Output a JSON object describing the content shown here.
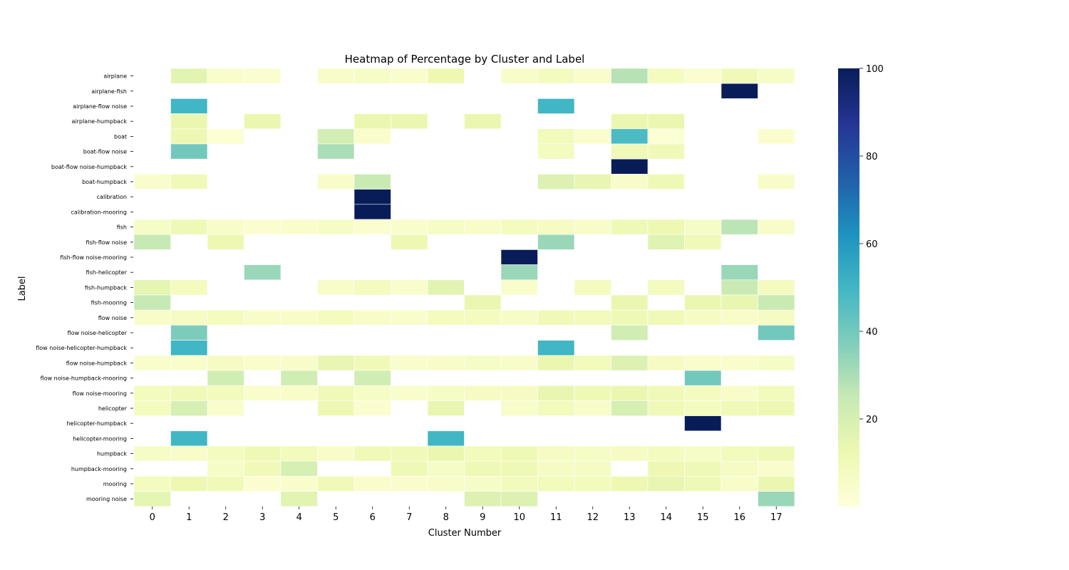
{
  "chart_data": {
    "type": "heatmap",
    "title": "Heatmap of Percentage by Cluster and Label",
    "xlabel": "Cluster Number",
    "ylabel": "Label",
    "x_categories": [
      "0",
      "1",
      "2",
      "3",
      "4",
      "5",
      "6",
      "7",
      "8",
      "9",
      "10",
      "11",
      "12",
      "13",
      "14",
      "15",
      "16",
      "17"
    ],
    "y_categories": [
      "airplane",
      "airplane-fish",
      "airplane-flow noise",
      "airplane-humpback",
      "boat",
      "boat-flow noise",
      "boat-flow noise-humpback",
      "boat-humpback",
      "calibration",
      "calibration-mooring",
      "fish",
      "fish-flow noise",
      "fish-flow noise-mooring",
      "fish-helicopter",
      "fish-humpback",
      "fish-mooring",
      "flow noise",
      "flow noise-helicopter",
      "flow noise-helicopter-humpback",
      "flow noise-humpback",
      "flow noise-humpback-mooring",
      "flow noise-mooring",
      "helicopter",
      "helicopter-humpback",
      "helicopter-mooring",
      "humpback",
      "humpback-mooring",
      "mooring",
      "mooring noise"
    ],
    "values": [
      [
        null,
        16,
        4,
        3,
        null,
        5,
        6,
        4,
        12,
        null,
        5,
        8,
        4,
        28,
        8,
        3,
        10,
        6
      ],
      [
        null,
        null,
        null,
        null,
        null,
        null,
        null,
        null,
        null,
        null,
        null,
        null,
        null,
        null,
        null,
        null,
        100,
        null
      ],
      [
        null,
        50,
        null,
        null,
        null,
        null,
        null,
        null,
        null,
        null,
        null,
        50,
        null,
        null,
        null,
        null,
        null,
        null
      ],
      [
        null,
        13,
        null,
        13,
        null,
        null,
        13,
        13,
        null,
        13,
        null,
        null,
        null,
        13,
        13,
        null,
        null,
        null
      ],
      [
        null,
        12,
        2,
        null,
        null,
        21,
        4,
        null,
        null,
        null,
        null,
        9,
        3,
        48,
        2,
        null,
        null,
        3
      ],
      [
        null,
        40,
        null,
        null,
        null,
        30,
        null,
        null,
        null,
        null,
        null,
        8,
        null,
        10,
        10,
        null,
        null,
        null
      ],
      [
        null,
        null,
        null,
        null,
        null,
        null,
        null,
        null,
        null,
        null,
        null,
        null,
        null,
        100,
        null,
        null,
        null,
        null
      ],
      [
        4,
        10,
        null,
        null,
        null,
        5,
        24,
        null,
        null,
        null,
        null,
        18,
        14,
        5,
        11,
        null,
        null,
        5
      ],
      [
        null,
        null,
        null,
        null,
        null,
        null,
        100,
        null,
        null,
        null,
        null,
        null,
        null,
        null,
        null,
        null,
        null,
        null
      ],
      [
        null,
        null,
        null,
        null,
        null,
        null,
        100,
        null,
        null,
        null,
        null,
        null,
        null,
        null,
        null,
        null,
        null,
        null
      ],
      [
        6,
        11,
        5,
        3,
        4,
        6,
        3,
        4,
        6,
        5,
        8,
        7,
        5,
        11,
        12,
        6,
        27,
        5
      ],
      [
        25,
        null,
        12,
        null,
        null,
        null,
        null,
        12,
        null,
        null,
        null,
        33,
        null,
        null,
        17,
        10,
        null,
        null
      ],
      [
        null,
        null,
        null,
        null,
        null,
        null,
        null,
        null,
        null,
        null,
        100,
        null,
        null,
        null,
        null,
        null,
        null,
        null
      ],
      [
        null,
        null,
        null,
        33,
        null,
        null,
        null,
        null,
        null,
        null,
        33,
        null,
        null,
        null,
        null,
        null,
        33,
        null
      ],
      [
        15,
        8,
        null,
        null,
        null,
        5,
        8,
        4,
        16,
        null,
        4,
        null,
        8,
        null,
        8,
        null,
        24,
        8
      ],
      [
        25,
        null,
        null,
        null,
        null,
        null,
        null,
        null,
        null,
        13,
        null,
        null,
        null,
        13,
        null,
        13,
        14,
        24
      ],
      [
        5,
        7,
        8,
        5,
        5,
        8,
        5,
        4,
        8,
        8,
        6,
        10,
        9,
        11,
        10,
        7,
        5,
        7
      ],
      [
        null,
        38,
        null,
        null,
        null,
        null,
        null,
        null,
        null,
        null,
        null,
        null,
        null,
        22,
        null,
        null,
        null,
        40
      ],
      [
        null,
        50,
        null,
        null,
        null,
        null,
        null,
        null,
        null,
        null,
        null,
        50,
        null,
        null,
        null,
        null,
        null,
        null
      ],
      [
        4,
        4,
        7,
        4,
        5,
        14,
        10,
        4,
        5,
        6,
        5,
        13,
        9,
        18,
        7,
        4,
        4,
        6
      ],
      [
        null,
        null,
        22,
        null,
        22,
        null,
        22,
        null,
        null,
        null,
        null,
        null,
        null,
        null,
        null,
        40,
        null,
        null
      ],
      [
        8,
        10,
        9,
        4,
        5,
        10,
        6,
        4,
        6,
        7,
        7,
        14,
        11,
        13,
        10,
        8,
        5,
        9
      ],
      [
        8,
        20,
        4,
        null,
        null,
        12,
        3,
        null,
        14,
        null,
        5,
        9,
        5,
        20,
        10,
        8,
        10,
        12
      ],
      [
        null,
        null,
        null,
        null,
        null,
        null,
        null,
        null,
        null,
        null,
        null,
        null,
        null,
        null,
        null,
        100,
        null,
        null
      ],
      [
        null,
        50,
        null,
        null,
        null,
        null,
        null,
        null,
        50,
        null,
        null,
        null,
        null,
        null,
        null,
        null,
        null,
        null
      ],
      [
        6,
        5,
        8,
        11,
        9,
        5,
        10,
        10,
        13,
        9,
        11,
        7,
        6,
        7,
        8,
        6,
        9,
        11
      ],
      [
        null,
        null,
        6,
        10,
        20,
        null,
        null,
        11,
        6,
        11,
        11,
        7,
        7,
        null,
        12,
        11,
        7,
        4
      ],
      [
        8,
        12,
        10,
        3,
        4,
        10,
        4,
        4,
        5,
        6,
        9,
        9,
        9,
        12,
        14,
        11,
        5,
        13
      ],
      [
        15,
        null,
        null,
        null,
        16,
        null,
        null,
        null,
        null,
        18,
        18,
        null,
        null,
        null,
        null,
        null,
        null,
        33
      ]
    ],
    "colorbar": {
      "colormap": "YlGnBu",
      "min": 0,
      "max": 100,
      "ticks": [
        20,
        40,
        60,
        80,
        100
      ]
    },
    "grid": false
  }
}
